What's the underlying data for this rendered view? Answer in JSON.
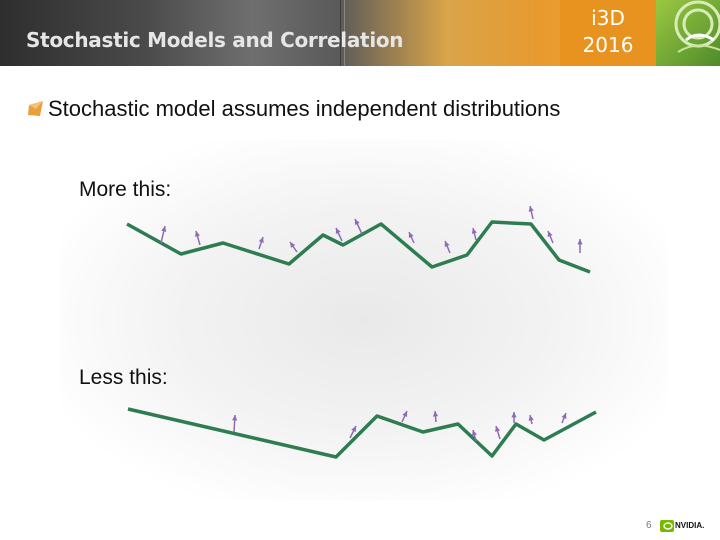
{
  "header": {
    "title": "Stochastic Models and Correlation",
    "event_line1": "i3D",
    "event_line2": "2016"
  },
  "slide": {
    "bullet": "Stochastic model assumes independent distributions",
    "label_more": "More this:",
    "label_less": "Less this:",
    "page_number": "6",
    "footer_brand": "NVIDIA."
  },
  "colors": {
    "line": "#2e7d52",
    "arrow": "#8e6bb5",
    "badge": "#e89320",
    "accent_green": "#76b900"
  },
  "icons": [
    "bullet-arrow-icon",
    "i3d-logo-icon",
    "nvidia-logo-icon"
  ]
}
